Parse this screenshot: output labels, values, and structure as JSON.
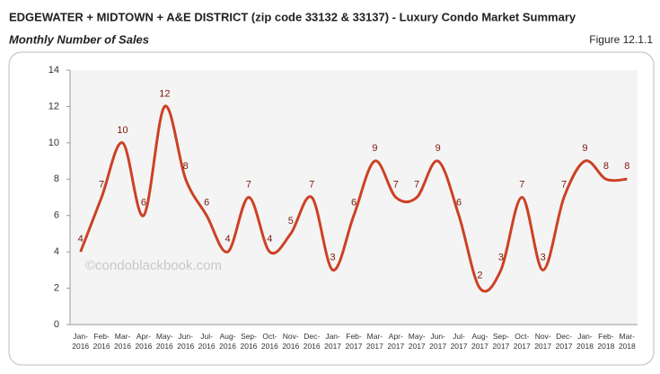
{
  "chart_data": {
    "type": "line",
    "title": "EDGEWATER + MIDTOWN + A&E DISTRICT (zip code 33132 & 33137) - Luxury Condo Market Summary",
    "subtitle": "Monthly Number of Sales",
    "figure_label": "Figure 12.1.1",
    "watermark": "©condoblackbook.com",
    "categories": [
      "Jan-2016",
      "Feb-2016",
      "Mar-2016",
      "Apr-2016",
      "May-2016",
      "Jun-2016",
      "Jul-2016",
      "Aug-2016",
      "Sep-2016",
      "Oct-2016",
      "Nov-2016",
      "Dec-2016",
      "Jan-2017",
      "Feb-2017",
      "Mar-2017",
      "Apr-2017",
      "May-2017",
      "Jun-2017",
      "Jul-2017",
      "Aug-2017",
      "Sep-2017",
      "Oct-2017",
      "Nov-2017",
      "Dec-2017",
      "Jan-2018",
      "Feb-2018",
      "Mar-2018"
    ],
    "values": [
      4,
      7,
      10,
      6,
      12,
      8,
      6,
      4,
      7,
      4,
      5,
      7,
      3,
      6,
      9,
      7,
      7,
      9,
      6,
      2,
      3,
      7,
      3,
      7,
      9,
      8,
      8
    ],
    "color": "#cc4125",
    "ylim": [
      0,
      14
    ],
    "yticks": [
      0,
      2,
      4,
      6,
      8,
      10,
      12,
      14
    ],
    "grid": false
  }
}
